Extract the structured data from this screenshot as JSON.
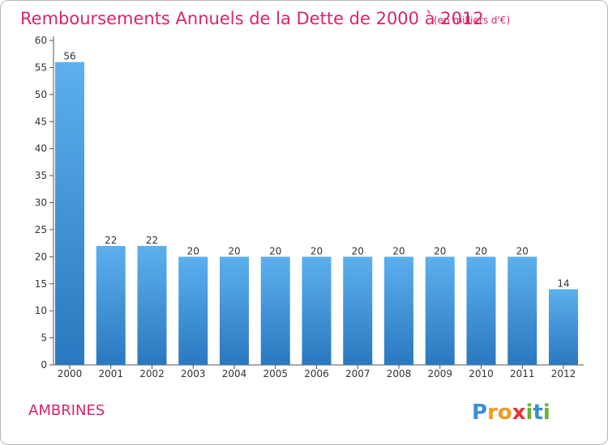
{
  "title": "Remboursements Annuels de la Dette de 2000 à 2012",
  "subtitle": "(en milliers d'€)",
  "commune": "AMBRINES",
  "logo": {
    "letters": [
      "P",
      "r",
      "o",
      "x",
      "i",
      "t",
      "i"
    ],
    "colors": [
      "#3a8fd6",
      "#f39a1e",
      "#f39a1e",
      "#e8323c",
      "#6bb23b",
      "#3a8fd6",
      "#6bb23b"
    ]
  },
  "colors": {
    "bar": "#4a9fdf",
    "bar_dark": "#2a78bf",
    "bar_light": "#5cb0ee",
    "title": "#d6246e"
  },
  "chart_data": {
    "type": "bar",
    "title": "Remboursements Annuels de la Dette de 2000 à 2012",
    "subtitle": "(en milliers d'€)",
    "categories": [
      "2000",
      "2001",
      "2002",
      "2003",
      "2004",
      "2005",
      "2006",
      "2007",
      "2008",
      "2009",
      "2010",
      "2011",
      "2012"
    ],
    "values": [
      56,
      22,
      22,
      20,
      20,
      20,
      20,
      20,
      20,
      20,
      20,
      20,
      14
    ],
    "ylim": [
      0,
      60
    ],
    "yticks": [
      0,
      5,
      10,
      15,
      20,
      25,
      30,
      35,
      40,
      45,
      50,
      55,
      60
    ],
    "grid": false,
    "legend": "none"
  }
}
